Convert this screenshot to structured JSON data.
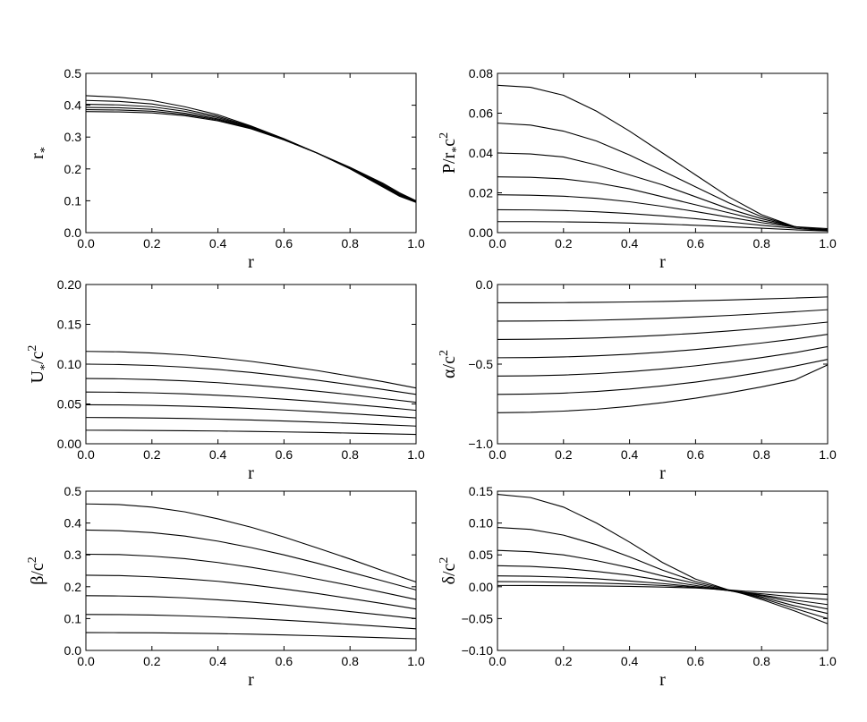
{
  "chart_data": [
    {
      "type": "line",
      "panel": "top-left",
      "ylabel": "r_*",
      "ylabel_parts": {
        "main": "r",
        "sub": "*",
        "rest": "",
        "sup": ""
      },
      "xlabel": "r",
      "xlim": [
        0.0,
        1.0
      ],
      "ylim": [
        0.0,
        0.5
      ],
      "xticks": [
        "0.0",
        "0.2",
        "0.4",
        "0.6",
        "0.8",
        "1.0"
      ],
      "yticks": [
        "0.0",
        "0.1",
        "0.2",
        "0.3",
        "0.4",
        "0.5"
      ],
      "x": [
        0.0,
        0.1,
        0.2,
        0.3,
        0.4,
        0.5,
        0.6,
        0.7,
        0.8,
        0.9,
        0.95,
        1.0
      ],
      "series": [
        {
          "values": [
            0.43,
            0.425,
            0.415,
            0.395,
            0.37,
            0.335,
            0.295,
            0.25,
            0.205,
            0.155,
            0.125,
            0.1
          ]
        },
        {
          "values": [
            0.415,
            0.412,
            0.404,
            0.387,
            0.365,
            0.333,
            0.294,
            0.25,
            0.204,
            0.152,
            0.122,
            0.099
          ]
        },
        {
          "values": [
            0.403,
            0.401,
            0.395,
            0.381,
            0.361,
            0.331,
            0.293,
            0.25,
            0.203,
            0.149,
            0.12,
            0.098
          ]
        },
        {
          "values": [
            0.393,
            0.392,
            0.387,
            0.375,
            0.357,
            0.329,
            0.292,
            0.25,
            0.202,
            0.147,
            0.118,
            0.097
          ]
        },
        {
          "values": [
            0.386,
            0.385,
            0.381,
            0.371,
            0.354,
            0.327,
            0.291,
            0.25,
            0.201,
            0.145,
            0.116,
            0.096
          ]
        },
        {
          "values": [
            0.38,
            0.379,
            0.376,
            0.367,
            0.351,
            0.326,
            0.291,
            0.25,
            0.2,
            0.143,
            0.114,
            0.095
          ]
        }
      ]
    },
    {
      "type": "line",
      "panel": "top-right",
      "ylabel": "P/r_*c^2",
      "ylabel_parts": {
        "main": "P/r",
        "sub": "*",
        "rest": "c",
        "sup": "2"
      },
      "xlabel": "r",
      "xlim": [
        0.0,
        1.0
      ],
      "ylim": [
        0.0,
        0.08
      ],
      "xticks": [
        "0.0",
        "0.2",
        "0.4",
        "0.6",
        "0.8",
        "1.0"
      ],
      "yticks": [
        "0.00",
        "0.02",
        "0.04",
        "0.06",
        "0.08"
      ],
      "x": [
        0.0,
        0.1,
        0.2,
        0.3,
        0.4,
        0.5,
        0.6,
        0.7,
        0.8,
        0.9,
        1.0
      ],
      "series": [
        {
          "values": [
            0.074,
            0.073,
            0.069,
            0.061,
            0.051,
            0.04,
            0.029,
            0.018,
            0.009,
            0.003,
            0.001
          ]
        },
        {
          "values": [
            0.055,
            0.054,
            0.051,
            0.046,
            0.039,
            0.031,
            0.023,
            0.015,
            0.008,
            0.003,
            0.001
          ]
        },
        {
          "values": [
            0.04,
            0.0395,
            0.038,
            0.034,
            0.029,
            0.024,
            0.018,
            0.012,
            0.007,
            0.003,
            0.001
          ]
        },
        {
          "values": [
            0.028,
            0.0278,
            0.027,
            0.025,
            0.022,
            0.018,
            0.014,
            0.01,
            0.006,
            0.003,
            0.002
          ]
        },
        {
          "values": [
            0.019,
            0.0188,
            0.0183,
            0.0172,
            0.0155,
            0.0132,
            0.0106,
            0.0078,
            0.005,
            0.0028,
            0.0015
          ]
        },
        {
          "values": [
            0.0115,
            0.0114,
            0.0111,
            0.0105,
            0.0096,
            0.0084,
            0.007,
            0.0054,
            0.0037,
            0.0022,
            0.001
          ]
        },
        {
          "values": [
            0.0055,
            0.0055,
            0.0054,
            0.0052,
            0.0048,
            0.0043,
            0.0037,
            0.003,
            0.0022,
            0.0014,
            0.0008
          ]
        }
      ]
    },
    {
      "type": "line",
      "panel": "middle-left",
      "ylabel": "U_*/c^2",
      "ylabel_parts": {
        "main": "U",
        "sub": "*",
        "rest": "/c",
        "sup": "2"
      },
      "xlabel": "r",
      "xlim": [
        0.0,
        1.0
      ],
      "ylim": [
        0.0,
        0.2
      ],
      "xticks": [
        "0.0",
        "0.2",
        "0.4",
        "0.6",
        "0.8",
        "1.0"
      ],
      "yticks": [
        "0.00",
        "0.05",
        "0.10",
        "0.15",
        "0.20"
      ],
      "x": [
        0.0,
        0.1,
        0.2,
        0.3,
        0.4,
        0.5,
        0.6,
        0.7,
        0.8,
        0.9,
        1.0
      ],
      "series": [
        {
          "values": [
            0.116,
            0.1155,
            0.114,
            0.1115,
            0.108,
            0.1035,
            0.098,
            0.092,
            0.085,
            0.078,
            0.07
          ]
        },
        {
          "values": [
            0.1,
            0.0995,
            0.0983,
            0.0962,
            0.0933,
            0.0895,
            0.085,
            0.0798,
            0.0742,
            0.0682,
            0.062
          ]
        },
        {
          "values": [
            0.082,
            0.0816,
            0.0806,
            0.079,
            0.0767,
            0.0737,
            0.0702,
            0.0661,
            0.0617,
            0.0569,
            0.052
          ]
        },
        {
          "values": [
            0.065,
            0.0647,
            0.0639,
            0.0627,
            0.0609,
            0.0587,
            0.056,
            0.053,
            0.0496,
            0.046,
            0.042
          ]
        },
        {
          "values": [
            0.049,
            0.0488,
            0.0482,
            0.0473,
            0.046,
            0.0443,
            0.0424,
            0.0402,
            0.0378,
            0.0352,
            0.0325
          ]
        },
        {
          "values": [
            0.033,
            0.0328,
            0.0324,
            0.0318,
            0.0309,
            0.0298,
            0.0286,
            0.0272,
            0.0256,
            0.024,
            0.0222
          ]
        },
        {
          "values": [
            0.017,
            0.0169,
            0.0167,
            0.0164,
            0.016,
            0.0155,
            0.0149,
            0.0142,
            0.0134,
            0.0126,
            0.0117
          ]
        }
      ]
    },
    {
      "type": "line",
      "panel": "middle-right",
      "ylabel": "α/c^2",
      "ylabel_parts": {
        "main": "α/c",
        "sub": "",
        "rest": "",
        "sup": "2"
      },
      "xlabel": "r",
      "xlim": [
        0.0,
        1.0
      ],
      "ylim": [
        -1.0,
        0.0
      ],
      "xticks": [
        "0.0",
        "0.2",
        "0.4",
        "0.6",
        "0.8",
        "1.0"
      ],
      "yticks": [
        "−1.0",
        "−0.5",
        "0.0"
      ],
      "ytick_values": [
        -1.0,
        -0.5,
        0.0
      ],
      "x": [
        0.0,
        0.1,
        0.2,
        0.3,
        0.4,
        0.5,
        0.6,
        0.7,
        0.8,
        0.9,
        1.0
      ],
      "series": [
        {
          "values": [
            -0.115,
            -0.1148,
            -0.1138,
            -0.112,
            -0.1095,
            -0.1062,
            -0.102,
            -0.097,
            -0.091,
            -0.085,
            -0.078
          ]
        },
        {
          "values": [
            -0.23,
            -0.2295,
            -0.2275,
            -0.224,
            -0.219,
            -0.2123,
            -0.2042,
            -0.1945,
            -0.1833,
            -0.171,
            -0.158
          ]
        },
        {
          "values": [
            -0.345,
            -0.344,
            -0.341,
            -0.3358,
            -0.3283,
            -0.3185,
            -0.3063,
            -0.2918,
            -0.2753,
            -0.2568,
            -0.236
          ]
        },
        {
          "values": [
            -0.46,
            -0.4587,
            -0.4548,
            -0.4478,
            -0.4378,
            -0.4247,
            -0.4085,
            -0.3892,
            -0.3672,
            -0.3425,
            -0.313
          ]
        },
        {
          "values": [
            -0.575,
            -0.5733,
            -0.5683,
            -0.5597,
            -0.5472,
            -0.5308,
            -0.5105,
            -0.4865,
            -0.459,
            -0.428,
            -0.39
          ]
        },
        {
          "values": [
            -0.69,
            -0.688,
            -0.682,
            -0.6715,
            -0.6565,
            -0.6368,
            -0.6127,
            -0.584,
            -0.5508,
            -0.513,
            -0.47
          ]
        },
        {
          "values": [
            -0.805,
            -0.8025,
            -0.795,
            -0.783,
            -0.765,
            -0.742,
            -0.714,
            -0.681,
            -0.643,
            -0.6,
            -0.505
          ]
        }
      ]
    },
    {
      "type": "line",
      "panel": "bottom-left",
      "ylabel": "β/c^2",
      "ylabel_parts": {
        "main": "β/c",
        "sub": "",
        "rest": "",
        "sup": "2"
      },
      "xlabel": "r",
      "xlim": [
        0.0,
        1.0
      ],
      "ylim": [
        0.0,
        0.5
      ],
      "xticks": [
        "0.0",
        "0.2",
        "0.4",
        "0.6",
        "0.8",
        "1.0"
      ],
      "yticks": [
        "0.0",
        "0.1",
        "0.2",
        "0.3",
        "0.4",
        "0.5"
      ],
      "x": [
        0.0,
        0.1,
        0.2,
        0.3,
        0.4,
        0.5,
        0.6,
        0.7,
        0.8,
        0.9,
        1.0
      ],
      "series": [
        {
          "values": [
            0.46,
            0.458,
            0.45,
            0.435,
            0.413,
            0.387,
            0.356,
            0.322,
            0.287,
            0.25,
            0.215
          ]
        },
        {
          "values": [
            0.378,
            0.376,
            0.37,
            0.359,
            0.343,
            0.323,
            0.3,
            0.274,
            0.246,
            0.218,
            0.19
          ]
        },
        {
          "values": [
            0.302,
            0.301,
            0.296,
            0.288,
            0.276,
            0.261,
            0.244,
            0.224,
            0.204,
            0.182,
            0.16
          ]
        },
        {
          "values": [
            0.236,
            0.235,
            0.231,
            0.225,
            0.217,
            0.206,
            0.193,
            0.179,
            0.163,
            0.147,
            0.13
          ]
        },
        {
          "values": [
            0.172,
            0.171,
            0.169,
            0.165,
            0.159,
            0.152,
            0.143,
            0.133,
            0.122,
            0.111,
            0.1
          ]
        },
        {
          "values": [
            0.113,
            0.1125,
            0.111,
            0.1085,
            0.105,
            0.1005,
            0.095,
            0.089,
            0.082,
            0.075,
            0.068
          ]
        },
        {
          "values": [
            0.056,
            0.0558,
            0.0553,
            0.0543,
            0.0528,
            0.051,
            0.0487,
            0.046,
            0.043,
            0.0398,
            0.0365
          ]
        }
      ]
    },
    {
      "type": "line",
      "panel": "bottom-right",
      "ylabel": "δ/c^2",
      "ylabel_parts": {
        "main": "δ/c",
        "sub": "",
        "rest": "",
        "sup": "2"
      },
      "xlabel": "r",
      "xlim": [
        0.0,
        1.0
      ],
      "ylim": [
        -0.1,
        0.15
      ],
      "xticks": [
        "0.0",
        "0.2",
        "0.4",
        "0.6",
        "0.8",
        "1.0"
      ],
      "yticks": [
        "−0.10",
        "−0.05",
        "0.00",
        "0.05",
        "0.10",
        "0.15"
      ],
      "ytick_values": [
        -0.1,
        -0.05,
        0.0,
        0.05,
        0.1,
        0.15
      ],
      "x": [
        0.0,
        0.1,
        0.2,
        0.3,
        0.4,
        0.5,
        0.6,
        0.7,
        0.75,
        0.8,
        0.9,
        1.0
      ],
      "series": [
        {
          "values": [
            0.145,
            0.14,
            0.125,
            0.1,
            0.07,
            0.038,
            0.012,
            -0.005,
            -0.012,
            -0.02,
            -0.038,
            -0.058
          ]
        },
        {
          "values": [
            0.093,
            0.09,
            0.081,
            0.066,
            0.047,
            0.026,
            0.008,
            -0.005,
            -0.011,
            -0.018,
            -0.034,
            -0.05
          ]
        },
        {
          "values": [
            0.057,
            0.055,
            0.05,
            0.041,
            0.03,
            0.017,
            0.005,
            -0.006,
            -0.011,
            -0.016,
            -0.03,
            -0.042
          ]
        },
        {
          "values": [
            0.033,
            0.032,
            0.029,
            0.024,
            0.018,
            0.01,
            0.002,
            -0.006,
            -0.01,
            -0.014,
            -0.025,
            -0.035
          ]
        },
        {
          "values": [
            0.017,
            0.0165,
            0.015,
            0.0125,
            0.009,
            0.005,
            0.0,
            -0.006,
            -0.009,
            -0.013,
            -0.021,
            -0.028
          ]
        },
        {
          "values": [
            0.008,
            0.0078,
            0.007,
            0.0058,
            0.0042,
            0.002,
            -0.001,
            -0.006,
            -0.009,
            -0.011,
            -0.016,
            -0.02
          ]
        },
        {
          "values": [
            0.002,
            0.0019,
            0.0016,
            0.0012,
            0.0005,
            -0.0005,
            -0.002,
            -0.005,
            -0.007,
            -0.008,
            -0.01,
            -0.012
          ]
        }
      ]
    }
  ]
}
